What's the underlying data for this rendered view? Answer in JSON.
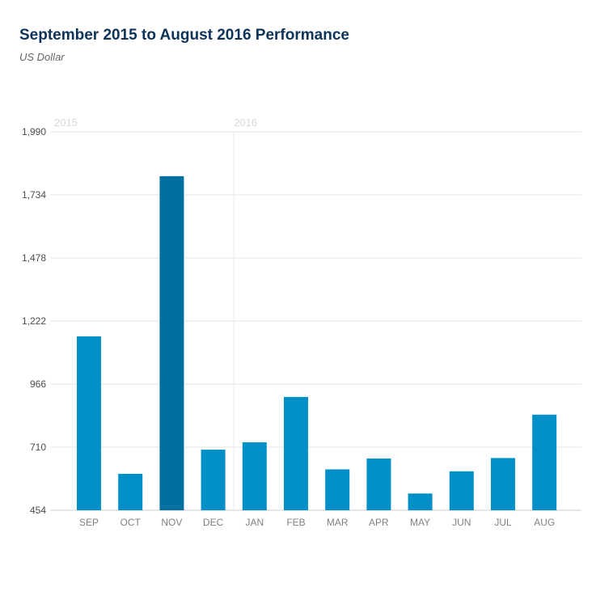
{
  "title": "September 2015 to August 2016 Performance",
  "subtitle": "US Dollar",
  "colors": {
    "bar": "#008fc6",
    "highlight": "#00719e",
    "grid": "#e6e6e6"
  },
  "chart_data": {
    "type": "bar",
    "title": "September 2015 to August 2016 Performance",
    "subtitle": "US Dollar",
    "categories": [
      "SEP",
      "OCT",
      "NOV",
      "DEC",
      "JAN",
      "FEB",
      "MAR",
      "APR",
      "MAY",
      "JUN",
      "JUL",
      "AUG"
    ],
    "values": [
      1160,
      602,
      1810,
      700,
      730,
      914,
      620,
      664,
      522,
      612,
      666,
      842
    ],
    "highlight_index": 2,
    "year_labels": [
      {
        "label": "2015",
        "category_index": 0
      },
      {
        "label": "2016",
        "category_index": 4
      }
    ],
    "yticks": [
      454,
      710,
      966,
      1222,
      1478,
      1734,
      1990
    ],
    "ytick_labels": [
      "454",
      "710",
      "966",
      "1,222",
      "1,478",
      "1,734",
      "1,990"
    ],
    "ylim": [
      454,
      1990
    ],
    "xlabel": "",
    "ylabel": "",
    "grid": true
  }
}
